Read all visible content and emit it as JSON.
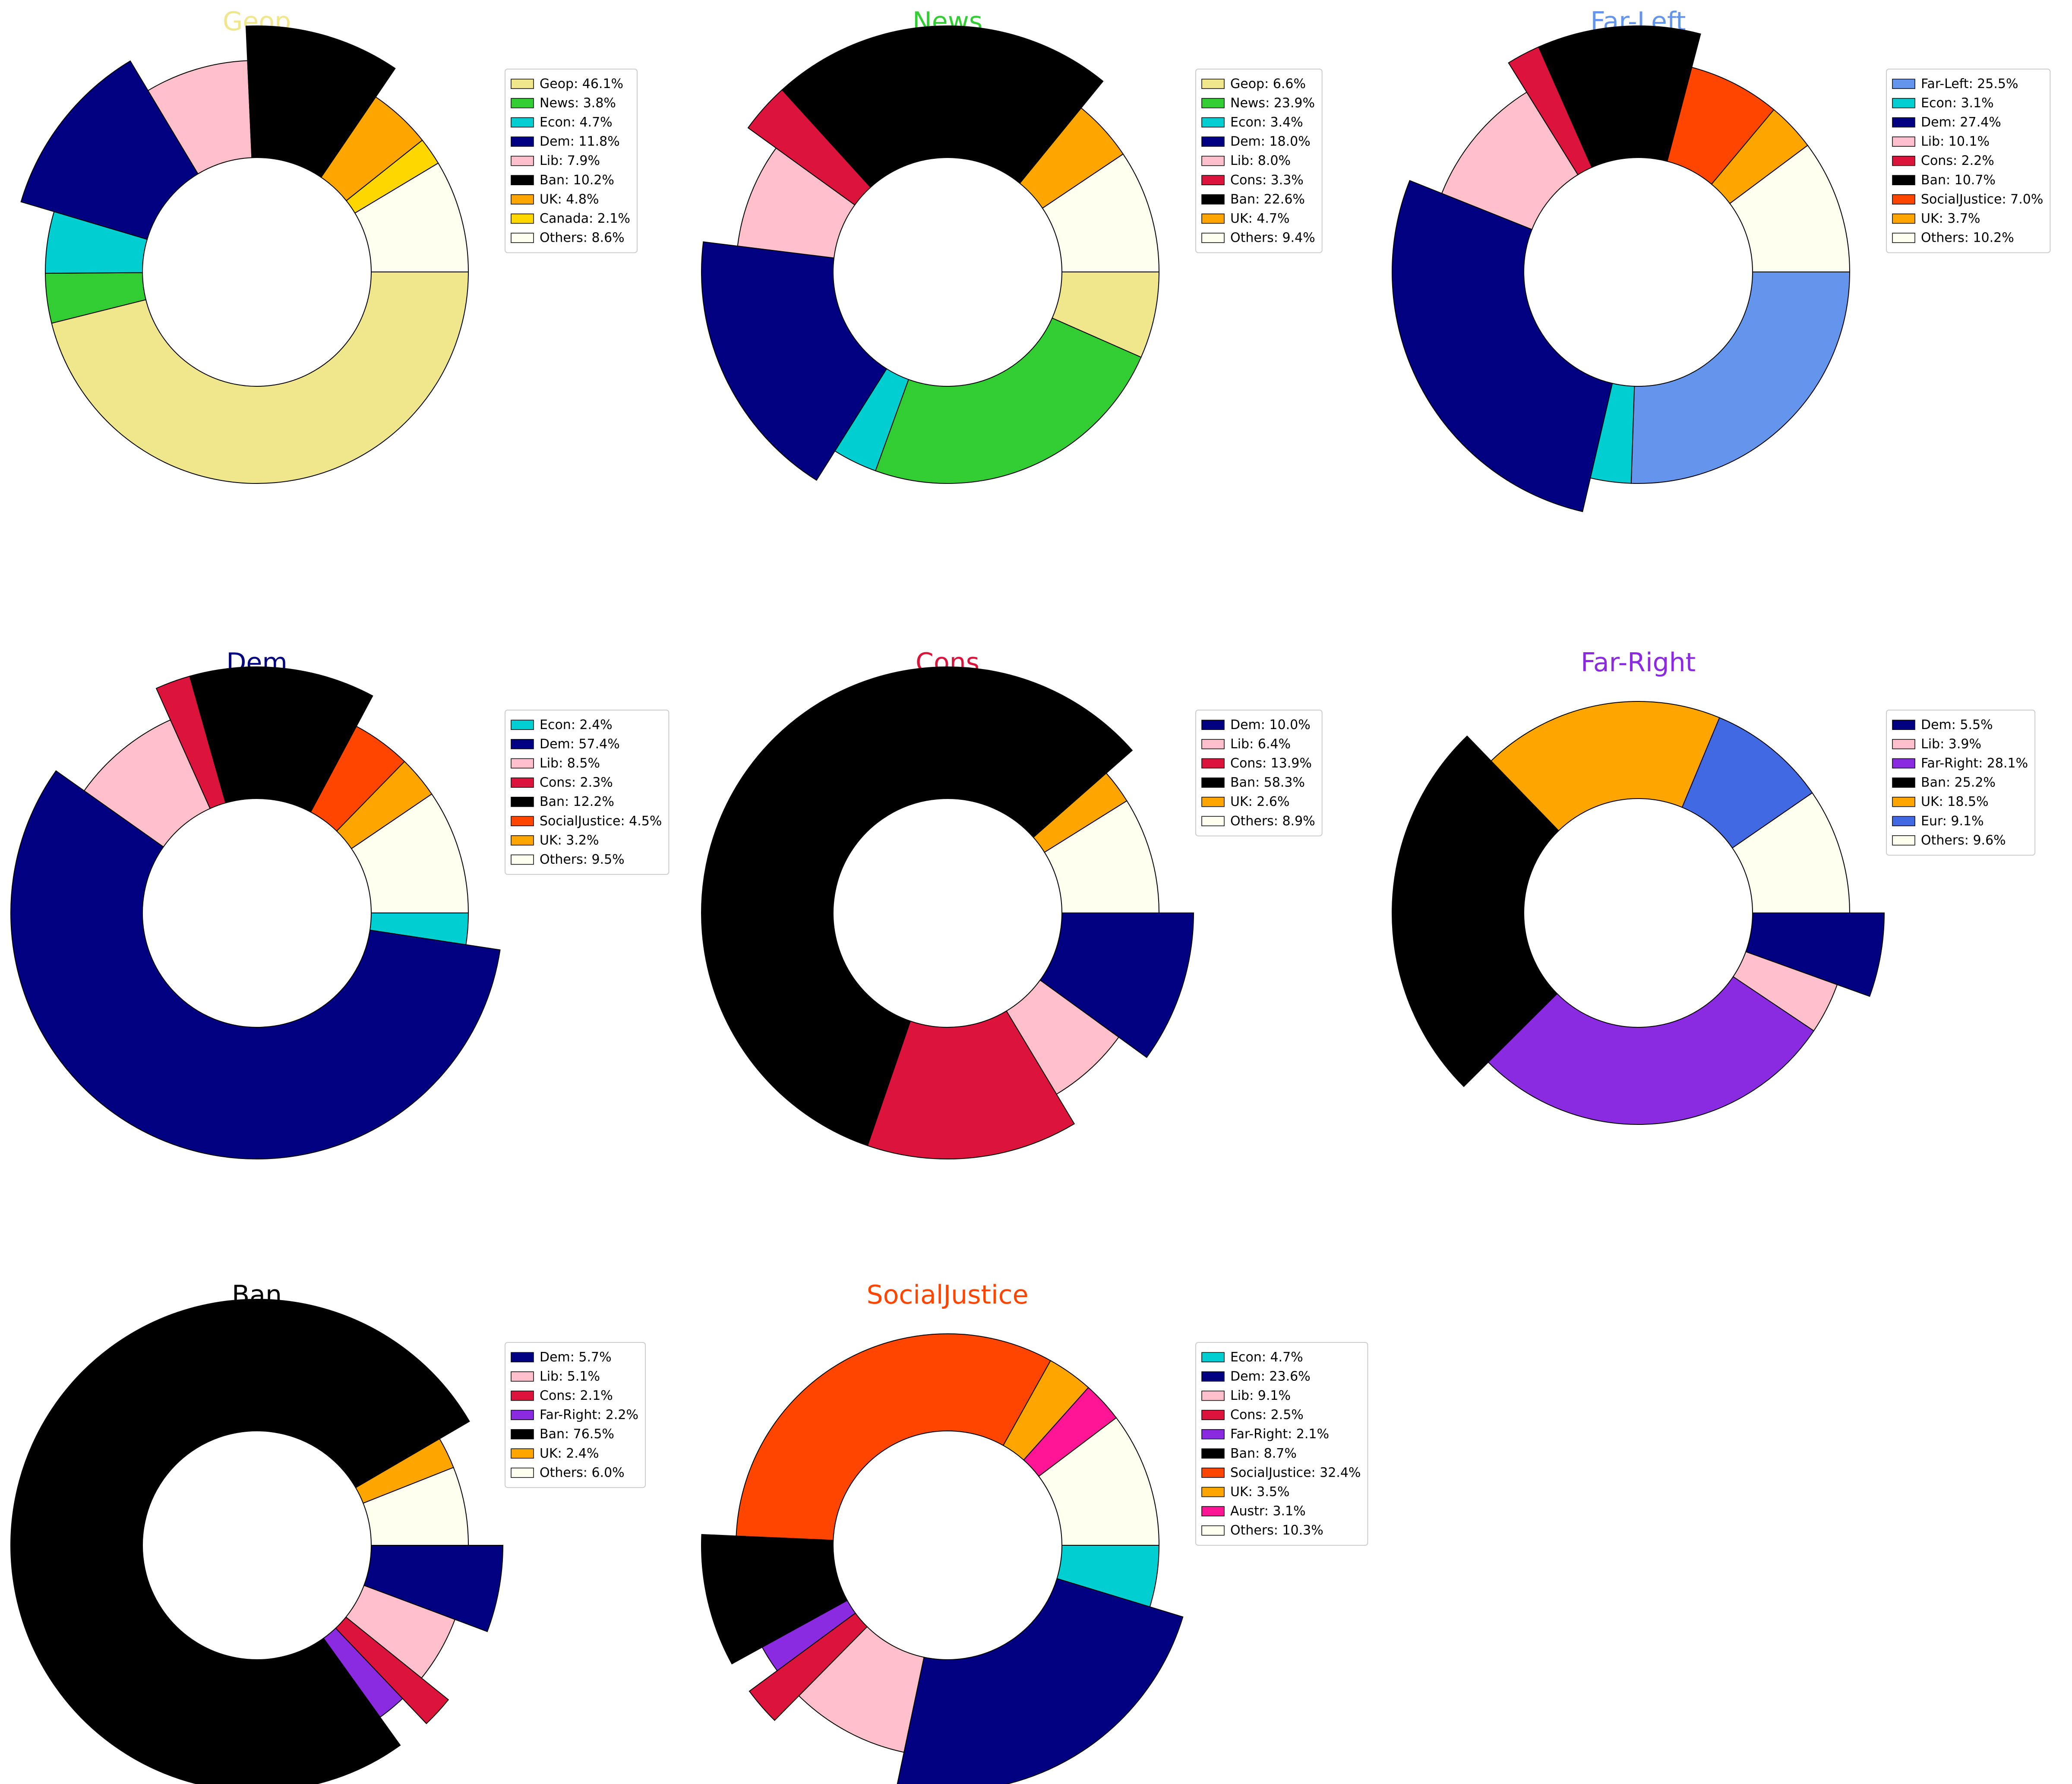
{
  "chart_data": [
    {
      "type": "pie",
      "title": "Geop",
      "title_color": "#F0E68C",
      "categories": [
        "Geop",
        "News",
        "Econ",
        "Dem",
        "Lib",
        "Ban",
        "UK",
        "Canada",
        "Others"
      ],
      "values": [
        46.1,
        3.8,
        4.7,
        11.8,
        7.9,
        10.2,
        4.8,
        2.1,
        8.6
      ],
      "colors": [
        "#F0E68C",
        "#32CD32",
        "#00CED1",
        "#000080",
        "#FFC0CB",
        "#000000",
        "#FFA500",
        "#FFD700",
        "#FFFFF0"
      ],
      "exploded": [
        "Dem",
        "Ban"
      ],
      "legend_labels": [
        "Geop: 46.1%",
        "News: 3.8%",
        "Econ: 4.7%",
        "Dem: 11.8%",
        "Lib: 7.9%",
        "Ban: 10.2%",
        "UK: 4.8%",
        "Canada: 2.1%",
        "Others: 8.6%"
      ],
      "legend_position": "right"
    },
    {
      "type": "pie",
      "title": "News",
      "title_color": "#32CD32",
      "categories": [
        "Geop",
        "News",
        "Econ",
        "Dem",
        "Lib",
        "Cons",
        "Ban",
        "UK",
        "Others"
      ],
      "values": [
        6.6,
        23.9,
        3.4,
        18.0,
        8.0,
        3.3,
        22.6,
        4.7,
        9.4
      ],
      "colors": [
        "#F0E68C",
        "#32CD32",
        "#00CED1",
        "#000080",
        "#FFC0CB",
        "#DC143C",
        "#000000",
        "#FFA500",
        "#FFFFF0"
      ],
      "exploded": [
        "Dem",
        "Cons",
        "Ban"
      ],
      "legend_labels": [
        "Geop: 6.6%",
        "News: 23.9%",
        "Econ: 3.4%",
        "Dem: 18.0%",
        "Lib: 8.0%",
        "Cons: 3.3%",
        "Ban: 22.6%",
        "UK: 4.7%",
        "Others: 9.4%"
      ],
      "legend_position": "right"
    },
    {
      "type": "pie",
      "title": "Far-Left",
      "title_color": "#6495ED",
      "categories": [
        "Far-Left",
        "Econ",
        "Dem",
        "Lib",
        "Cons",
        "Ban",
        "SocialJustice",
        "UK",
        "Others"
      ],
      "values": [
        25.5,
        3.1,
        27.4,
        10.1,
        2.2,
        10.7,
        7.0,
        3.7,
        10.2
      ],
      "colors": [
        "#6495ED",
        "#00CED1",
        "#000080",
        "#FFC0CB",
        "#DC143C",
        "#000000",
        "#FF4500",
        "#FFA500",
        "#FFFFF0"
      ],
      "exploded": [
        "Dem",
        "Cons",
        "Ban"
      ],
      "legend_labels": [
        "Far-Left: 25.5%",
        "Econ: 3.1%",
        "Dem: 27.4%",
        "Lib: 10.1%",
        "Cons: 2.2%",
        "Ban: 10.7%",
        "SocialJustice: 7.0%",
        "UK: 3.7%",
        "Others: 10.2%"
      ],
      "legend_position": "right"
    },
    {
      "type": "pie",
      "title": "Dem",
      "title_color": "#000080",
      "categories": [
        "Econ",
        "Dem",
        "Lib",
        "Cons",
        "Ban",
        "SocialJustice",
        "UK",
        "Others"
      ],
      "values": [
        2.4,
        57.4,
        8.5,
        2.3,
        12.2,
        4.5,
        3.2,
        9.5
      ],
      "colors": [
        "#00CED1",
        "#000080",
        "#FFC0CB",
        "#DC143C",
        "#000000",
        "#FF4500",
        "#FFA500",
        "#FFFFF0"
      ],
      "exploded": [
        "Dem",
        "Cons",
        "Ban"
      ],
      "legend_labels": [
        "Econ: 2.4%",
        "Dem: 57.4%",
        "Lib: 8.5%",
        "Cons: 2.3%",
        "Ban: 12.2%",
        "SocialJustice: 4.5%",
        "UK: 3.2%",
        "Others: 9.5%"
      ],
      "legend_position": "right"
    },
    {
      "type": "pie",
      "title": "Cons",
      "title_color": "#DC143C",
      "categories": [
        "Dem",
        "Lib",
        "Cons",
        "Ban",
        "UK",
        "Others"
      ],
      "values": [
        10.0,
        6.4,
        13.9,
        58.3,
        2.6,
        8.9
      ],
      "colors": [
        "#000080",
        "#FFC0CB",
        "#DC143C",
        "#000000",
        "#FFA500",
        "#FFFFF0"
      ],
      "exploded": [
        "Dem",
        "Cons",
        "Ban"
      ],
      "legend_labels": [
        "Dem: 10.0%",
        "Lib: 6.4%",
        "Cons: 13.9%",
        "Ban: 58.3%",
        "UK: 2.6%",
        "Others: 8.9%"
      ],
      "legend_position": "right"
    },
    {
      "type": "pie",
      "title": "Far-Right",
      "title_color": "#8A2BE2",
      "categories": [
        "Dem",
        "Lib",
        "Far-Right",
        "Ban",
        "UK",
        "Eur",
        "Others"
      ],
      "values": [
        5.5,
        3.9,
        28.1,
        25.2,
        18.5,
        9.1,
        9.6
      ],
      "colors": [
        "#000080",
        "#FFC0CB",
        "#8A2BE2",
        "#000000",
        "#FFA500",
        "#4169E1",
        "#FFFFF0"
      ],
      "exploded": [
        "Dem",
        "Ban"
      ],
      "legend_labels": [
        "Dem: 5.5%",
        "Lib: 3.9%",
        "Far-Right: 28.1%",
        "Ban: 25.2%",
        "UK: 18.5%",
        "Eur: 9.1%",
        "Others: 9.6%"
      ],
      "legend_position": "right"
    },
    {
      "type": "pie",
      "title": "Ban",
      "title_color": "#000000",
      "categories": [
        "Dem",
        "Lib",
        "Cons",
        "Far-Right",
        "Ban",
        "UK",
        "Others"
      ],
      "values": [
        5.7,
        5.1,
        2.1,
        2.2,
        76.5,
        2.4,
        6.0
      ],
      "colors": [
        "#000080",
        "#FFC0CB",
        "#DC143C",
        "#8A2BE2",
        "#000000",
        "#FFA500",
        "#FFFFF0"
      ],
      "exploded": [
        "Dem",
        "Cons",
        "Ban"
      ],
      "legend_labels": [
        "Dem: 5.7%",
        "Lib: 5.1%",
        "Cons: 2.1%",
        "Far-Right: 2.2%",
        "Ban: 76.5%",
        "UK: 2.4%",
        "Others: 6.0%"
      ],
      "legend_position": "right"
    },
    {
      "type": "pie",
      "title": "SocialJustice",
      "title_color": "#FF4500",
      "categories": [
        "Econ",
        "Dem",
        "Lib",
        "Cons",
        "Far-Right",
        "Ban",
        "SocialJustice",
        "UK",
        "Austr",
        "Others"
      ],
      "values": [
        4.7,
        23.6,
        9.1,
        2.5,
        2.1,
        8.7,
        32.4,
        3.5,
        3.1,
        10.3
      ],
      "colors": [
        "#00CED1",
        "#000080",
        "#FFC0CB",
        "#DC143C",
        "#8A2BE2",
        "#000000",
        "#FF4500",
        "#FFA500",
        "#FF1493",
        "#FFFFF0"
      ],
      "exploded": [
        "Dem",
        "Cons",
        "Ban"
      ],
      "legend_labels": [
        "Econ: 4.7%",
        "Dem: 23.6%",
        "Lib: 9.1%",
        "Cons: 2.5%",
        "Far-Right: 2.1%",
        "Ban: 8.7%",
        "SocialJustice: 32.4%",
        "UK: 3.5%",
        "Austr: 3.1%",
        "Others: 10.3%"
      ],
      "legend_position": "right"
    }
  ]
}
